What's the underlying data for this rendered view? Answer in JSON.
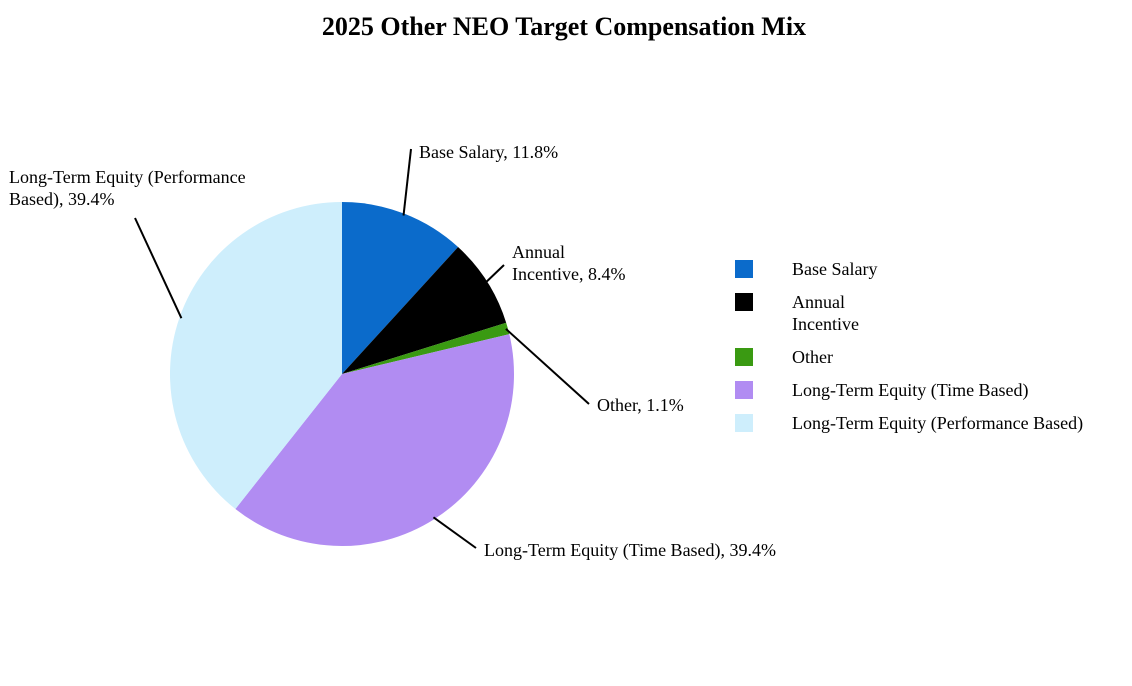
{
  "chart_data": {
    "type": "pie",
    "title": "2025 Other NEO Target Compensation Mix",
    "start_angle_deg": 0,
    "direction": "clockwise",
    "slices": [
      {
        "name": "Base Salary",
        "value": 11.8,
        "label": [
          "Base Salary, 11.8%"
        ],
        "color": "#0b6bcb"
      },
      {
        "name": "Annual Incentive",
        "value": 8.4,
        "label": [
          "Annual",
          "Incentive, 8.4%"
        ],
        "color": "#000000"
      },
      {
        "name": "Other",
        "value": 1.1,
        "label": [
          "Other, 1.1%"
        ],
        "color": "#3a9a12"
      },
      {
        "name": "Long-Term Equity (Time Based)",
        "value": 39.4,
        "label": [
          "Long-Term Equity (Time Based), 39.4%"
        ],
        "color": "#b18cf2"
      },
      {
        "name": "Long-Term Equity (Performance Based)",
        "value": 39.4,
        "label": [
          "Long-Term Equity (Performance",
          "Based), 39.4%"
        ],
        "color": "#ceeefc"
      }
    ],
    "legend": {
      "placement": "right",
      "items": [
        {
          "text": "Base Salary",
          "color": "#0b6bcb"
        },
        {
          "text": "Annual Incentive",
          "color": "#000000"
        },
        {
          "text": "Other",
          "color": "#3a9a12"
        },
        {
          "text": "Long-Term Equity (Time Based)",
          "color": "#b18cf2"
        },
        {
          "text": "Long-Term Equity (Performance Based)",
          "color": "#ceeefc"
        }
      ]
    }
  }
}
